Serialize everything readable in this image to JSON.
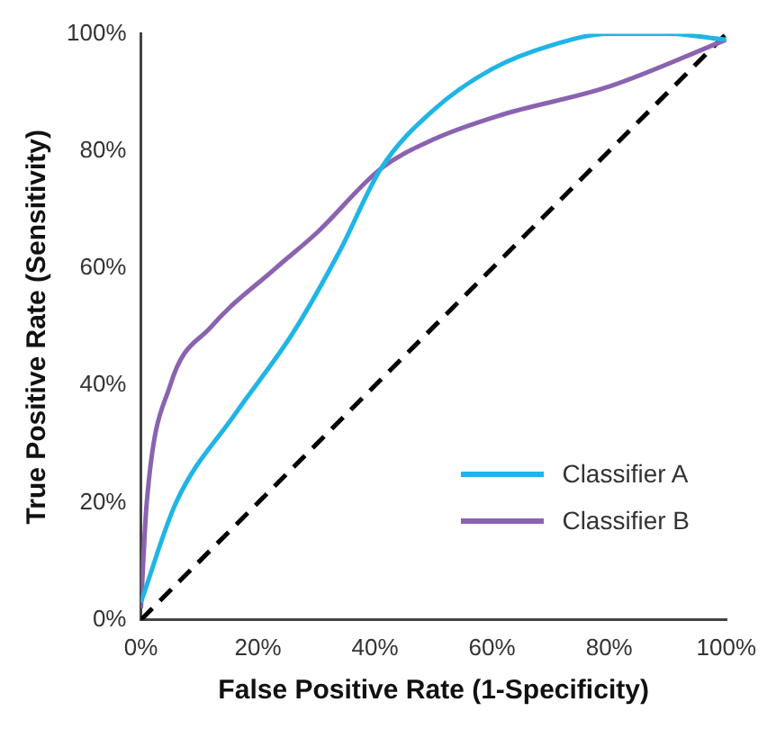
{
  "chart_data": {
    "type": "line",
    "xlabel": "False Positive Rate (1-Specificity)",
    "ylabel": "True Positive Rate (Sensitivity)",
    "xlim": [
      0,
      100
    ],
    "ylim": [
      0,
      100
    ],
    "xticks": [
      {
        "value": 0,
        "label": "0%"
      },
      {
        "value": 20,
        "label": "20%"
      },
      {
        "value": 40,
        "label": "40%"
      },
      {
        "value": 60,
        "label": "60%"
      },
      {
        "value": 80,
        "label": "80%"
      },
      {
        "value": 100,
        "label": "100%"
      }
    ],
    "yticks": [
      {
        "value": 0,
        "label": "0%"
      },
      {
        "value": 20,
        "label": "20%"
      },
      {
        "value": 40,
        "label": "40%"
      },
      {
        "value": 60,
        "label": "60%"
      },
      {
        "value": 80,
        "label": "80%"
      },
      {
        "value": 100,
        "label": "100%"
      }
    ],
    "grid": false,
    "legend": "bottom right",
    "marker": "none",
    "series": [
      {
        "name": "Classifier A",
        "color": "#1fb5e6",
        "line_style": "solid",
        "x": [
          0,
          6,
          16,
          26,
          34,
          41,
          50,
          60,
          70,
          80,
          90,
          100
        ],
        "values": [
          3,
          20,
          35,
          49,
          63,
          77,
          87,
          94,
          98,
          100,
          100,
          99
        ]
      },
      {
        "name": "Classifier B",
        "color": "#8a63b0",
        "line_style": "solid",
        "x": [
          0,
          1,
          5,
          12,
          23,
          30,
          41,
          50,
          61,
          80,
          100
        ],
        "values": [
          2,
          20,
          40,
          50,
          60,
          66,
          77,
          82,
          86,
          91,
          99
        ]
      },
      {
        "color": "#000000",
        "line_style": "dashed",
        "x": [
          0,
          100
        ],
        "values": [
          0,
          100
        ]
      }
    ]
  }
}
